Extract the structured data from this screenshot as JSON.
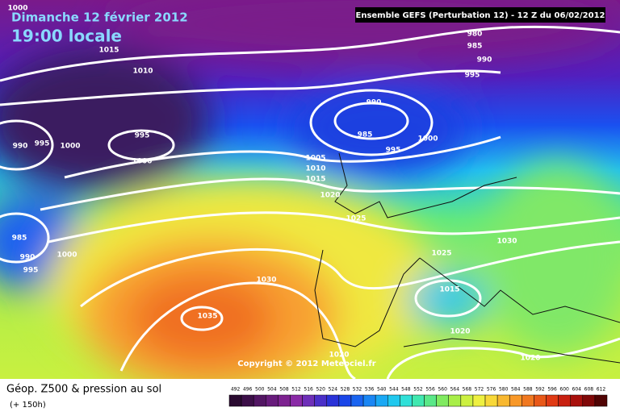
{
  "header": {
    "date": "Dimanche 12 février 2012",
    "time": "19:00 locale",
    "run": "Ensemble GEFS (Perturbation 12)  -  12 Z du 06/02/2012"
  },
  "isobar_labels": [
    "1000",
    "1015",
    "1010",
    "980",
    "985",
    "990",
    "995",
    "990",
    "985",
    "995",
    "1000",
    "1005",
    "1010",
    "1015",
    "1020",
    "1025",
    "990",
    "995",
    "1000",
    "995",
    "1000",
    "985",
    "990",
    "995",
    "1000",
    "1030",
    "1035",
    "1030",
    "1025",
    "1015",
    "1020",
    "1020",
    "1020"
  ],
  "copyright": "Copyright © 2012 Meteociel.fr",
  "legend": {
    "title": "Géop. Z500 & pression au sol",
    "lead": "(+ 150h)",
    "scale": [
      "492",
      "496",
      "500",
      "504",
      "508",
      "512",
      "516",
      "520",
      "524",
      "528",
      "532",
      "536",
      "540",
      "544",
      "548",
      "552",
      "556",
      "560",
      "564",
      "568",
      "572",
      "576",
      "580",
      "584",
      "588",
      "592",
      "596",
      "600",
      "604",
      "608",
      "612"
    ],
    "colors": [
      "#2a0a30",
      "#3c0f48",
      "#521663",
      "#681c7c",
      "#7d2290",
      "#8a2aa6",
      "#6e2fb8",
      "#4a2fc8",
      "#2a32d8",
      "#1a46e8",
      "#1a64f0",
      "#1a86f4",
      "#1aa8f4",
      "#20c8ee",
      "#30e0d8",
      "#40e8b0",
      "#5ae888",
      "#80ea60",
      "#a8ee48",
      "#ccf040",
      "#eef040",
      "#f8d838",
      "#f8b830",
      "#f89828",
      "#f07820",
      "#e85818",
      "#e03a14",
      "#c82010",
      "#a8100c",
      "#800808",
      "#500404"
    ]
  }
}
